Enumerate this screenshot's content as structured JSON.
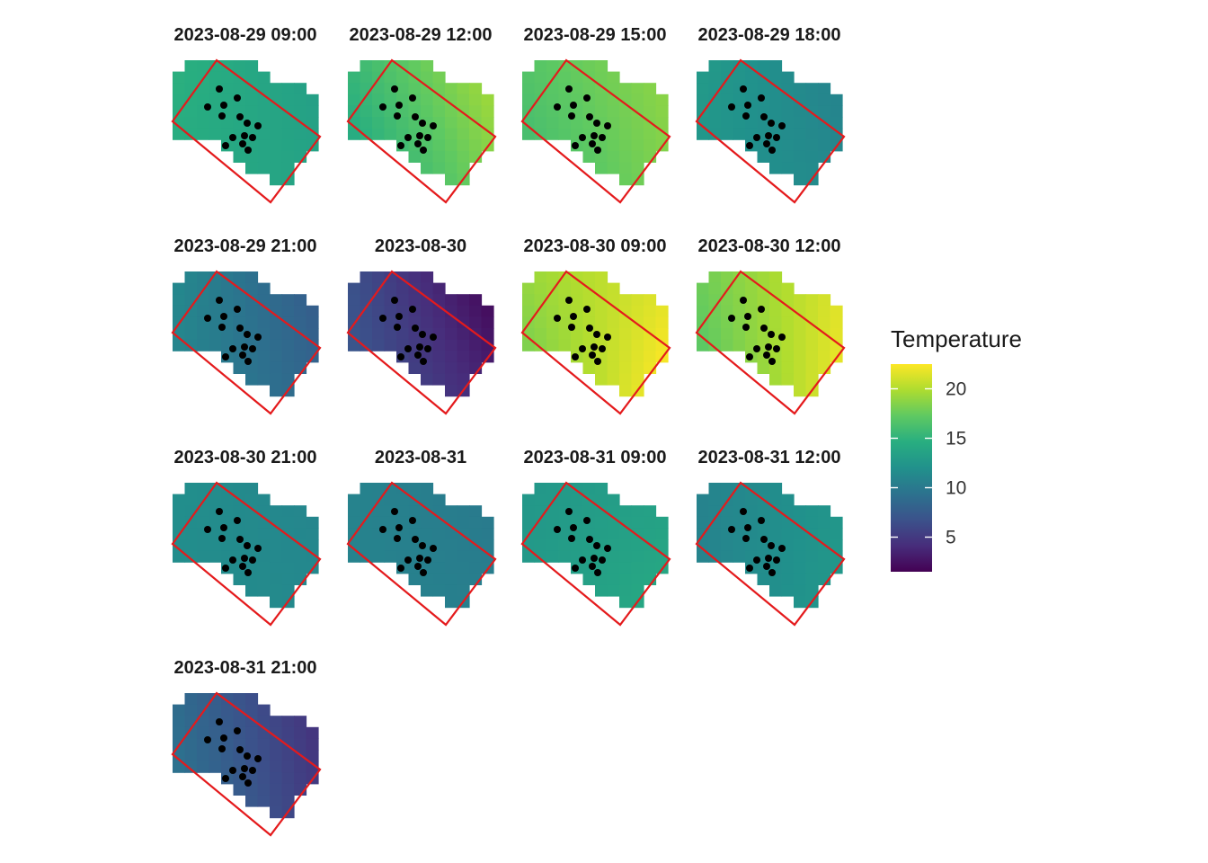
{
  "chart_data": {
    "type": "heatmap",
    "subtype": "faceted-raster-map",
    "title": "",
    "xlabel": "",
    "ylabel": "",
    "colorscale": "viridis",
    "overlay": {
      "boundary_color": "#e41a1c",
      "station_color": "#000000",
      "station_count": 14
    },
    "legend": {
      "title": "Temperature",
      "placement": "right",
      "range": [
        1.5,
        22.5
      ],
      "ticks": [
        {
          "value": 5,
          "label": "5"
        },
        {
          "value": 10,
          "label": "10"
        },
        {
          "value": 15,
          "label": "15"
        },
        {
          "value": 20,
          "label": "20"
        }
      ]
    },
    "facets": [
      {
        "label": "2023-08-29 09:00",
        "nw": 14.8,
        "ne": 13.3,
        "sw": 14.3,
        "se": 13.6
      },
      {
        "label": "2023-08-29 12:00",
        "nw": 15.5,
        "ne": 19.6,
        "sw": 13.8,
        "se": 18.2
      },
      {
        "label": "2023-08-29 15:00",
        "nw": 16.8,
        "ne": 18.8,
        "sw": 15.8,
        "se": 18.3
      },
      {
        "label": "2023-08-29 18:00",
        "nw": 12.8,
        "ne": 10.8,
        "sw": 12.3,
        "se": 11.3
      },
      {
        "label": "2023-08-29 21:00",
        "nw": 11.2,
        "ne": 7.6,
        "sw": 10.9,
        "se": 8.4
      },
      {
        "label": "2023-08-30",
        "nw": 6.6,
        "ne": 1.8,
        "sw": 7.2,
        "se": 3.6
      },
      {
        "label": "2023-08-30 09:00",
        "nw": 19.2,
        "ne": 21.4,
        "sw": 17.8,
        "se": 22.6
      },
      {
        "label": "2023-08-30 12:00",
        "nw": 17.8,
        "ne": 21.4,
        "sw": 16.8,
        "se": 21.8
      },
      {
        "label": "2023-08-30 21:00",
        "nw": 11.8,
        "ne": 11.0,
        "sw": 11.6,
        "se": 11.3
      },
      {
        "label": "2023-08-31",
        "nw": 10.8,
        "ne": 10.0,
        "sw": 10.8,
        "se": 10.4
      },
      {
        "label": "2023-08-31 09:00",
        "nw": 12.6,
        "ne": 13.3,
        "sw": 12.8,
        "se": 14.2
      },
      {
        "label": "2023-08-31 12:00",
        "nw": 10.8,
        "ne": 12.4,
        "sw": 10.9,
        "se": 12.6
      },
      {
        "label": "2023-08-31 21:00",
        "nw": 8.8,
        "ne": 4.6,
        "sw": 9.6,
        "se": 5.2
      }
    ]
  }
}
